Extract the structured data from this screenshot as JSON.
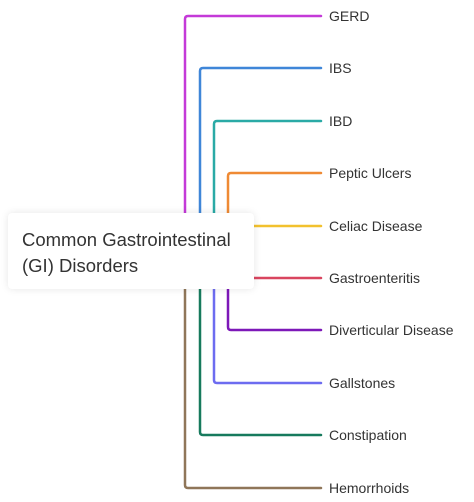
{
  "root": {
    "title": "Common Gastrointestinal (GI) Disorders"
  },
  "branches": [
    {
      "label": "GERD",
      "color": "#c43ad8"
    },
    {
      "label": "IBS",
      "color": "#3f86d8"
    },
    {
      "label": "IBD",
      "color": "#2aaaa6"
    },
    {
      "label": "Peptic Ulcers",
      "color": "#ef8a34"
    },
    {
      "label": "Celiac Disease",
      "color": "#f2c12e"
    },
    {
      "label": "Gastroenteritis",
      "color": "#d9455f"
    },
    {
      "label": "Diverticular Disease",
      "color": "#7d18b8"
    },
    {
      "label": "Gallstones",
      "color": "#6d6cf0"
    },
    {
      "label": "Constipation",
      "color": "#177a5d"
    },
    {
      "label": "Hemorrhoids",
      "color": "#8f7659"
    }
  ]
}
